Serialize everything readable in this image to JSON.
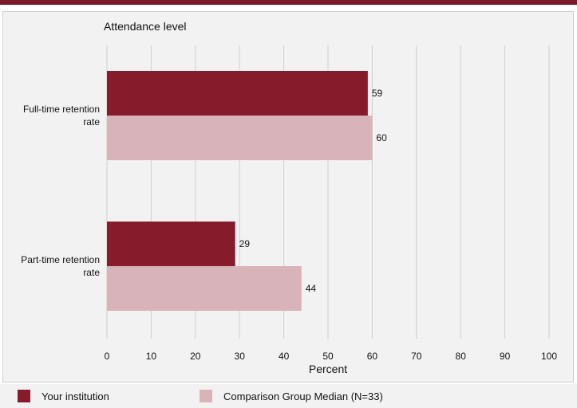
{
  "chart_data": {
    "type": "bar",
    "orientation": "horizontal",
    "title": "Attendance level",
    "xlabel": "Percent",
    "ylabel": "",
    "xlim": [
      0,
      100
    ],
    "x_ticks": [
      "0",
      "10",
      "20",
      "30",
      "40",
      "50",
      "60",
      "70",
      "80",
      "90",
      "100"
    ],
    "categories": [
      [
        "Full-time retention",
        "rate"
      ],
      [
        "Part-time retention",
        "rate"
      ]
    ],
    "series": [
      {
        "name": "Your institution",
        "color": "#861b2c",
        "values": [
          59,
          29
        ]
      },
      {
        "name": "Comparison Group Median (N=33)",
        "color": "#d8b3b9",
        "values": [
          60,
          44
        ]
      }
    ],
    "grid": "vertical",
    "legend_position": "bottom"
  },
  "legend": {
    "items": [
      {
        "label": "Your institution",
        "color": "#861b2c"
      },
      {
        "label": "Comparison Group Median (N=33)",
        "color": "#d8b3b9"
      }
    ]
  },
  "colors": {
    "accent": "#7a1a2a",
    "panel": "#f2f2f2",
    "grid": "#cccccc"
  }
}
